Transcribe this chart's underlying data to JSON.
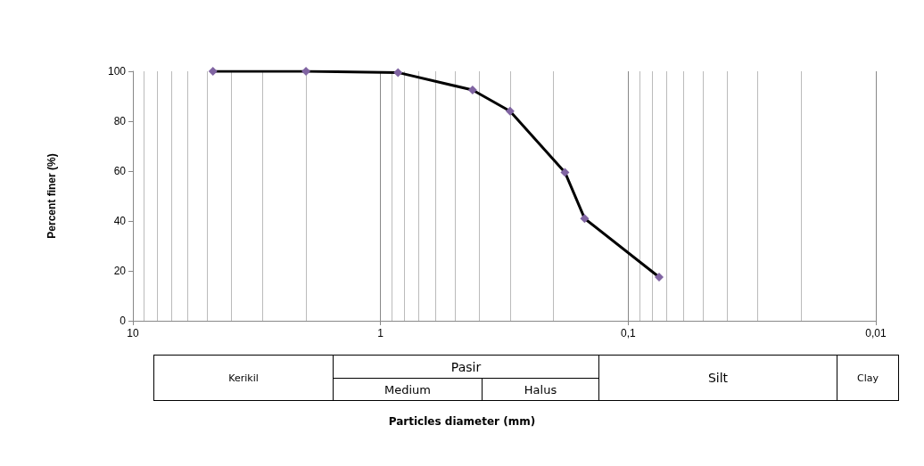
{
  "chart_data": {
    "type": "line",
    "ylabel": "Percent finer (%)",
    "x": [
      4.75,
      2.0,
      0.85,
      0.425,
      0.3,
      0.18,
      0.15,
      0.075
    ],
    "series": [
      {
        "color": "#000000",
        "colors": [
          "#8064a2",
          "#8064a2",
          "#8064a2",
          "#8064a2",
          "#8064a2",
          "#8064a2",
          "#8064a2",
          "#8064a2"
        ],
        "values": [
          100,
          100,
          99.5,
          92.5,
          84,
          59.5,
          41,
          17.5
        ]
      }
    ],
    "log": "x",
    "xlim": [
      10,
      0.01
    ],
    "xticks": [
      10,
      1,
      {
        "value": 0.1,
        "label": "0,1"
      },
      {
        "value": 0.01,
        "label": "0,01"
      }
    ],
    "ylim": [
      0,
      100
    ],
    "yticks": [
      0,
      20,
      40,
      60,
      80,
      100
    ],
    "grid": "x",
    "marker": "diamond",
    "line_style": "solid",
    "annotations": [
      "Kerikil",
      "Pasir",
      "Medium",
      "Halus",
      "Silt",
      "Clay",
      "Particles diameter (mm)"
    ]
  }
}
